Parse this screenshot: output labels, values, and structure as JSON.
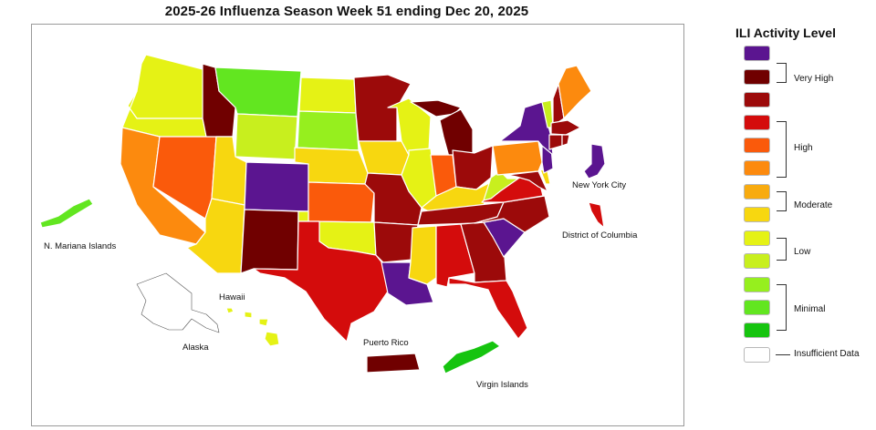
{
  "title": "2025-26 Influenza Season Week 51 ending Dec 20, 2025",
  "legend": {
    "title": "ILI Activity Level",
    "levels": [
      {
        "name": "level-13",
        "color": "#5b1590"
      },
      {
        "name": "level-12",
        "color": "#700000"
      },
      {
        "name": "level-11",
        "color": "#9c0a0a"
      },
      {
        "name": "level-10",
        "color": "#d40c0c"
      },
      {
        "name": "level-9",
        "color": "#fa5a0b"
      },
      {
        "name": "level-8",
        "color": "#fc8a0e"
      },
      {
        "name": "level-7",
        "color": "#f8ab0f"
      },
      {
        "name": "level-6",
        "color": "#f7d710"
      },
      {
        "name": "level-5",
        "color": "#e5f215"
      },
      {
        "name": "level-4",
        "color": "#c8ef1e"
      },
      {
        "name": "level-3",
        "color": "#96ef1e"
      },
      {
        "name": "level-2",
        "color": "#62e620"
      },
      {
        "name": "level-1",
        "color": "#16c40f"
      },
      {
        "name": "insufficient",
        "color": "#ffffff"
      }
    ],
    "groups": {
      "very_high": "Very High",
      "high": "High",
      "moderate": "Moderate",
      "low": "Low",
      "minimal": "Minimal",
      "insufficient": "Insufficient Data"
    }
  },
  "labels": {
    "n_mariana": "N. Mariana Islands",
    "alaska": "Alaska",
    "hawaii": "Hawaii",
    "puerto_rico": "Puerto Rico",
    "virgin_islands": "Virgin Islands",
    "nyc": "New York City",
    "dc": "District of Columbia"
  },
  "jurisdictions": {
    "WA": 5,
    "OR": 5,
    "CA": 8,
    "NV": 9,
    "ID": 12,
    "MT": 2,
    "WY": 4,
    "UT": 6,
    "AZ": 6,
    "CO": 13,
    "NM": 12,
    "ND": 5,
    "SD": 3,
    "NE": 6,
    "KS": 9,
    "OK": 5,
    "TX": 10,
    "MN": 11,
    "IA": 6,
    "MO": 11,
    "AR": 11,
    "LA": 13,
    "WI": 5,
    "IL": 5,
    "MI": 12,
    "IN": 9,
    "OH": 11,
    "KY": 6,
    "TN": 11,
    "MS": 6,
    "AL": 10,
    "GA": 11,
    "FL": 10,
    "SC": 13,
    "NC": 11,
    "VA": 10,
    "WV": 4,
    "PA": 8,
    "NY": 13,
    "VT": 4,
    "NH": 11,
    "ME": 8,
    "MA": 11,
    "CT": 11,
    "RI": 11,
    "NJ": 13,
    "DE": 6,
    "MD": 11,
    "NYC": 13,
    "DC": 10,
    "AK": 14,
    "HI": 5,
    "PR": 12,
    "VI": 1,
    "MP": 2
  }
}
